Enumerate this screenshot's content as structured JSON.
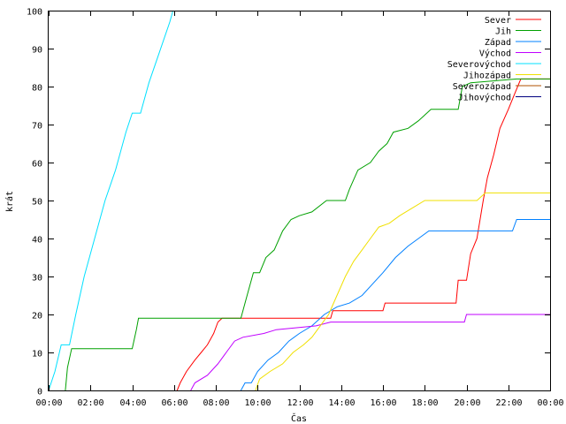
{
  "chart_data": {
    "type": "line",
    "xlabel": "Čas",
    "ylabel": "krát",
    "xlim": [
      0,
      24
    ],
    "ylim": [
      0,
      100
    ],
    "x_ticks": [
      {
        "value": 0,
        "label": "00:00"
      },
      {
        "value": 2,
        "label": "02:00"
      },
      {
        "value": 4,
        "label": "04:00"
      },
      {
        "value": 6,
        "label": "06:00"
      },
      {
        "value": 8,
        "label": "08:00"
      },
      {
        "value": 10,
        "label": "10:00"
      },
      {
        "value": 12,
        "label": "12:00"
      },
      {
        "value": 14,
        "label": "14:00"
      },
      {
        "value": 16,
        "label": "16:00"
      },
      {
        "value": 18,
        "label": "18:00"
      },
      {
        "value": 20,
        "label": "20:00"
      },
      {
        "value": 22,
        "label": "22:00"
      },
      {
        "value": 24,
        "label": "00:00"
      }
    ],
    "y_ticks": [
      {
        "value": 0,
        "label": "0"
      },
      {
        "value": 10,
        "label": "10"
      },
      {
        "value": 20,
        "label": "20"
      },
      {
        "value": 30,
        "label": "30"
      },
      {
        "value": 40,
        "label": "40"
      },
      {
        "value": 50,
        "label": "50"
      },
      {
        "value": 60,
        "label": "60"
      },
      {
        "value": 70,
        "label": "70"
      },
      {
        "value": 80,
        "label": "80"
      },
      {
        "value": 90,
        "label": "90"
      },
      {
        "value": 100,
        "label": "100"
      }
    ],
    "grid": false,
    "legend_position": "top-right",
    "series": [
      {
        "name": "Sever",
        "color": "#ff0000",
        "points": [
          [
            6.15,
            0
          ],
          [
            6.3,
            2
          ],
          [
            6.6,
            5
          ],
          [
            7.0,
            8
          ],
          [
            7.3,
            10
          ],
          [
            7.6,
            12
          ],
          [
            7.9,
            15
          ],
          [
            8.1,
            18
          ],
          [
            8.3,
            19
          ],
          [
            9.5,
            19
          ],
          [
            13.5,
            19
          ],
          [
            13.6,
            21
          ],
          [
            16.0,
            21
          ],
          [
            16.1,
            23
          ],
          [
            19.5,
            23
          ],
          [
            19.6,
            29
          ],
          [
            20.0,
            29
          ],
          [
            20.2,
            36
          ],
          [
            20.5,
            40
          ],
          [
            20.8,
            50
          ],
          [
            21.0,
            56
          ],
          [
            21.3,
            62
          ],
          [
            21.6,
            69
          ],
          [
            22.0,
            74
          ],
          [
            22.3,
            78
          ],
          [
            22.6,
            82
          ],
          [
            24,
            82
          ]
        ]
      },
      {
        "name": "Jih",
        "color": "#00a000",
        "points": [
          [
            0.8,
            0
          ],
          [
            0.9,
            6
          ],
          [
            1.1,
            11
          ],
          [
            4.0,
            11
          ],
          [
            4.2,
            16
          ],
          [
            4.3,
            19
          ],
          [
            9.2,
            19
          ],
          [
            9.3,
            21
          ],
          [
            9.5,
            25
          ],
          [
            9.8,
            31
          ],
          [
            10.1,
            31
          ],
          [
            10.4,
            35
          ],
          [
            10.8,
            37
          ],
          [
            11.2,
            42
          ],
          [
            11.6,
            45
          ],
          [
            12.0,
            46
          ],
          [
            12.6,
            47
          ],
          [
            13.3,
            50
          ],
          [
            14.2,
            50
          ],
          [
            14.4,
            53
          ],
          [
            14.8,
            58
          ],
          [
            15.4,
            60
          ],
          [
            15.8,
            63
          ],
          [
            16.2,
            65
          ],
          [
            16.5,
            68
          ],
          [
            17.2,
            69
          ],
          [
            17.7,
            71
          ],
          [
            18.3,
            74
          ],
          [
            19.6,
            74
          ],
          [
            19.8,
            80
          ],
          [
            20.2,
            81
          ],
          [
            22.4,
            82
          ],
          [
            24,
            82
          ]
        ]
      },
      {
        "name": "Západ",
        "color": "#0080ff",
        "points": [
          [
            9.2,
            0
          ],
          [
            9.4,
            2
          ],
          [
            9.7,
            2
          ],
          [
            10.0,
            5
          ],
          [
            10.5,
            8
          ],
          [
            11.0,
            10
          ],
          [
            11.5,
            13
          ],
          [
            12.0,
            15
          ],
          [
            12.6,
            17
          ],
          [
            13.2,
            20
          ],
          [
            13.8,
            22
          ],
          [
            14.4,
            23
          ],
          [
            15.0,
            25
          ],
          [
            15.5,
            28
          ],
          [
            16.0,
            31
          ],
          [
            16.6,
            35
          ],
          [
            17.2,
            38
          ],
          [
            17.7,
            40
          ],
          [
            18.2,
            42
          ],
          [
            22.2,
            42
          ],
          [
            22.4,
            45
          ],
          [
            24,
            45
          ]
        ]
      },
      {
        "name": "Východ",
        "color": "#c000ff",
        "points": [
          [
            6.8,
            0
          ],
          [
            7.0,
            2
          ],
          [
            7.6,
            4
          ],
          [
            8.1,
            7
          ],
          [
            8.5,
            10
          ],
          [
            8.9,
            13
          ],
          [
            9.3,
            14
          ],
          [
            10.3,
            15
          ],
          [
            10.9,
            16
          ],
          [
            12.8,
            17
          ],
          [
            13.5,
            18
          ],
          [
            19.9,
            18
          ],
          [
            20.0,
            20
          ],
          [
            24,
            20
          ]
        ]
      },
      {
        "name": "Severovýchod",
        "color": "#00e0ff",
        "points": [
          [
            0,
            0
          ],
          [
            0.3,
            5
          ],
          [
            0.6,
            12
          ],
          [
            1.0,
            12
          ],
          [
            1.3,
            20
          ],
          [
            1.7,
            30
          ],
          [
            2.2,
            40
          ],
          [
            2.7,
            50
          ],
          [
            3.2,
            58
          ],
          [
            3.7,
            68
          ],
          [
            4.0,
            73
          ],
          [
            4.4,
            73
          ],
          [
            4.8,
            81
          ],
          [
            5.3,
            89
          ],
          [
            5.8,
            97
          ],
          [
            5.95,
            100
          ]
        ]
      },
      {
        "name": "Jihozápad",
        "color": "#f0e000",
        "points": [
          [
            9.9,
            0
          ],
          [
            10.1,
            3
          ],
          [
            10.6,
            5
          ],
          [
            11.2,
            7
          ],
          [
            11.7,
            10
          ],
          [
            12.2,
            12
          ],
          [
            12.6,
            14
          ],
          [
            13.0,
            17
          ],
          [
            13.4,
            20
          ],
          [
            13.8,
            25
          ],
          [
            14.2,
            30
          ],
          [
            14.6,
            34
          ],
          [
            15.0,
            37
          ],
          [
            15.4,
            40
          ],
          [
            15.8,
            43
          ],
          [
            16.3,
            44
          ],
          [
            16.8,
            46
          ],
          [
            17.4,
            48
          ],
          [
            18.0,
            50
          ],
          [
            20.5,
            50
          ],
          [
            20.9,
            52
          ],
          [
            24,
            52
          ]
        ]
      }
    ],
    "legend_only": [
      {
        "name": "Severozápad",
        "color": "#b05000"
      },
      {
        "name": "Jihovýchod",
        "color": "#000080"
      }
    ]
  }
}
